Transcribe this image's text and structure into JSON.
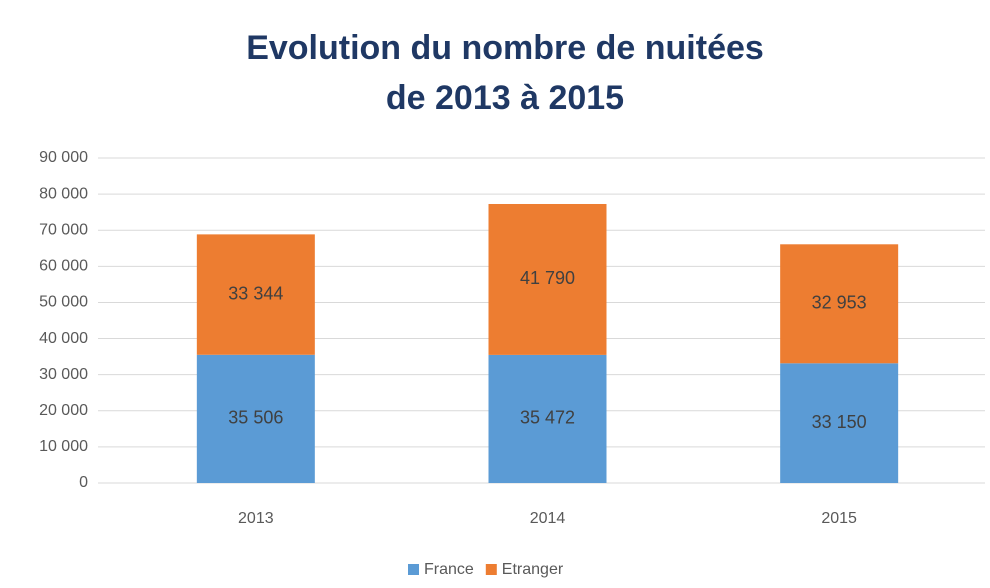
{
  "chart_data": {
    "type": "stacked_bar",
    "title": [
      "Evolution du nombre de nuitées",
      "de 2013 à 2015"
    ],
    "categories": [
      "2013",
      "2014",
      "2015"
    ],
    "series": [
      {
        "name": "France",
        "color": "#5b9bd5",
        "values": [
          35506,
          35472,
          33150
        ],
        "value_labels": [
          "35 506",
          "35 472",
          "33 150"
        ]
      },
      {
        "name": "Etranger",
        "color": "#ed7d31",
        "values": [
          33344,
          41790,
          32953
        ],
        "value_labels": [
          "33 344",
          "41 790",
          "32 953"
        ]
      }
    ],
    "ylim": [
      0,
      90000
    ],
    "yticks": [
      0,
      {
        "value": 10000,
        "label": "10 000"
      },
      {
        "value": 20000,
        "label": "20 000"
      },
      {
        "value": 30000,
        "label": "30 000"
      },
      {
        "value": 40000,
        "label": "40 000"
      },
      {
        "value": 50000,
        "label": "50 000"
      },
      {
        "value": 60000,
        "label": "60 000"
      },
      {
        "value": 70000,
        "label": "70 000"
      },
      {
        "value": 80000,
        "label": "80 000"
      },
      {
        "value": 90000,
        "label": "90 000"
      }
    ],
    "grid": true,
    "legend": "bottom"
  }
}
